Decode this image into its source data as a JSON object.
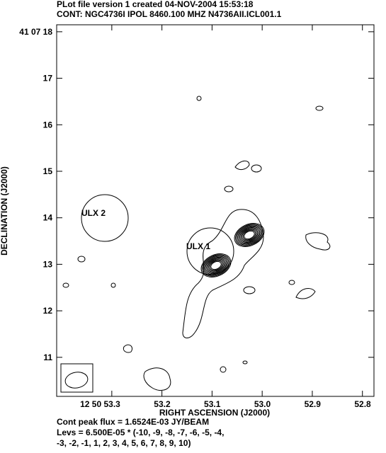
{
  "header": {
    "line1": "PLot file version 1  created 04-NOV-2004 15:53:18",
    "line2": "CONT: NGC4736I  IPOL  8460.100 MHZ  N4736AII.ICL001.1"
  },
  "chart_data": {
    "type": "contour",
    "xlabel": "RIGHT ASCENSION (J2000)",
    "ylabel": "DECLINATION (J2000)",
    "xlim": [
      53.41,
      52.777
    ],
    "ylim": [
      10.16,
      18.15
    ],
    "xticks": [
      {
        "value": 53.3,
        "label": "12 50 53.3"
      },
      53.2,
      53.1,
      {
        "value": 53,
        "label": "53.0"
      },
      52.9,
      52.8
    ],
    "yticks": [
      {
        "value": 18,
        "label": "41 07 18"
      },
      17,
      16,
      15,
      14,
      13,
      12,
      11
    ],
    "annotations": [
      "ULX 2",
      "ULX 1"
    ]
  },
  "footer": {
    "line1": "Cont peak flux =  1.6524E-03 JY/BEAM",
    "line2": "Levs = 6.500E-05 * (-10, -9, -8, -7, -6, -5, -4,",
    "line3": "-3, -2, -1, 1, 2, 3, 4, 5, 6, 7, 8, 9, 10)"
  }
}
